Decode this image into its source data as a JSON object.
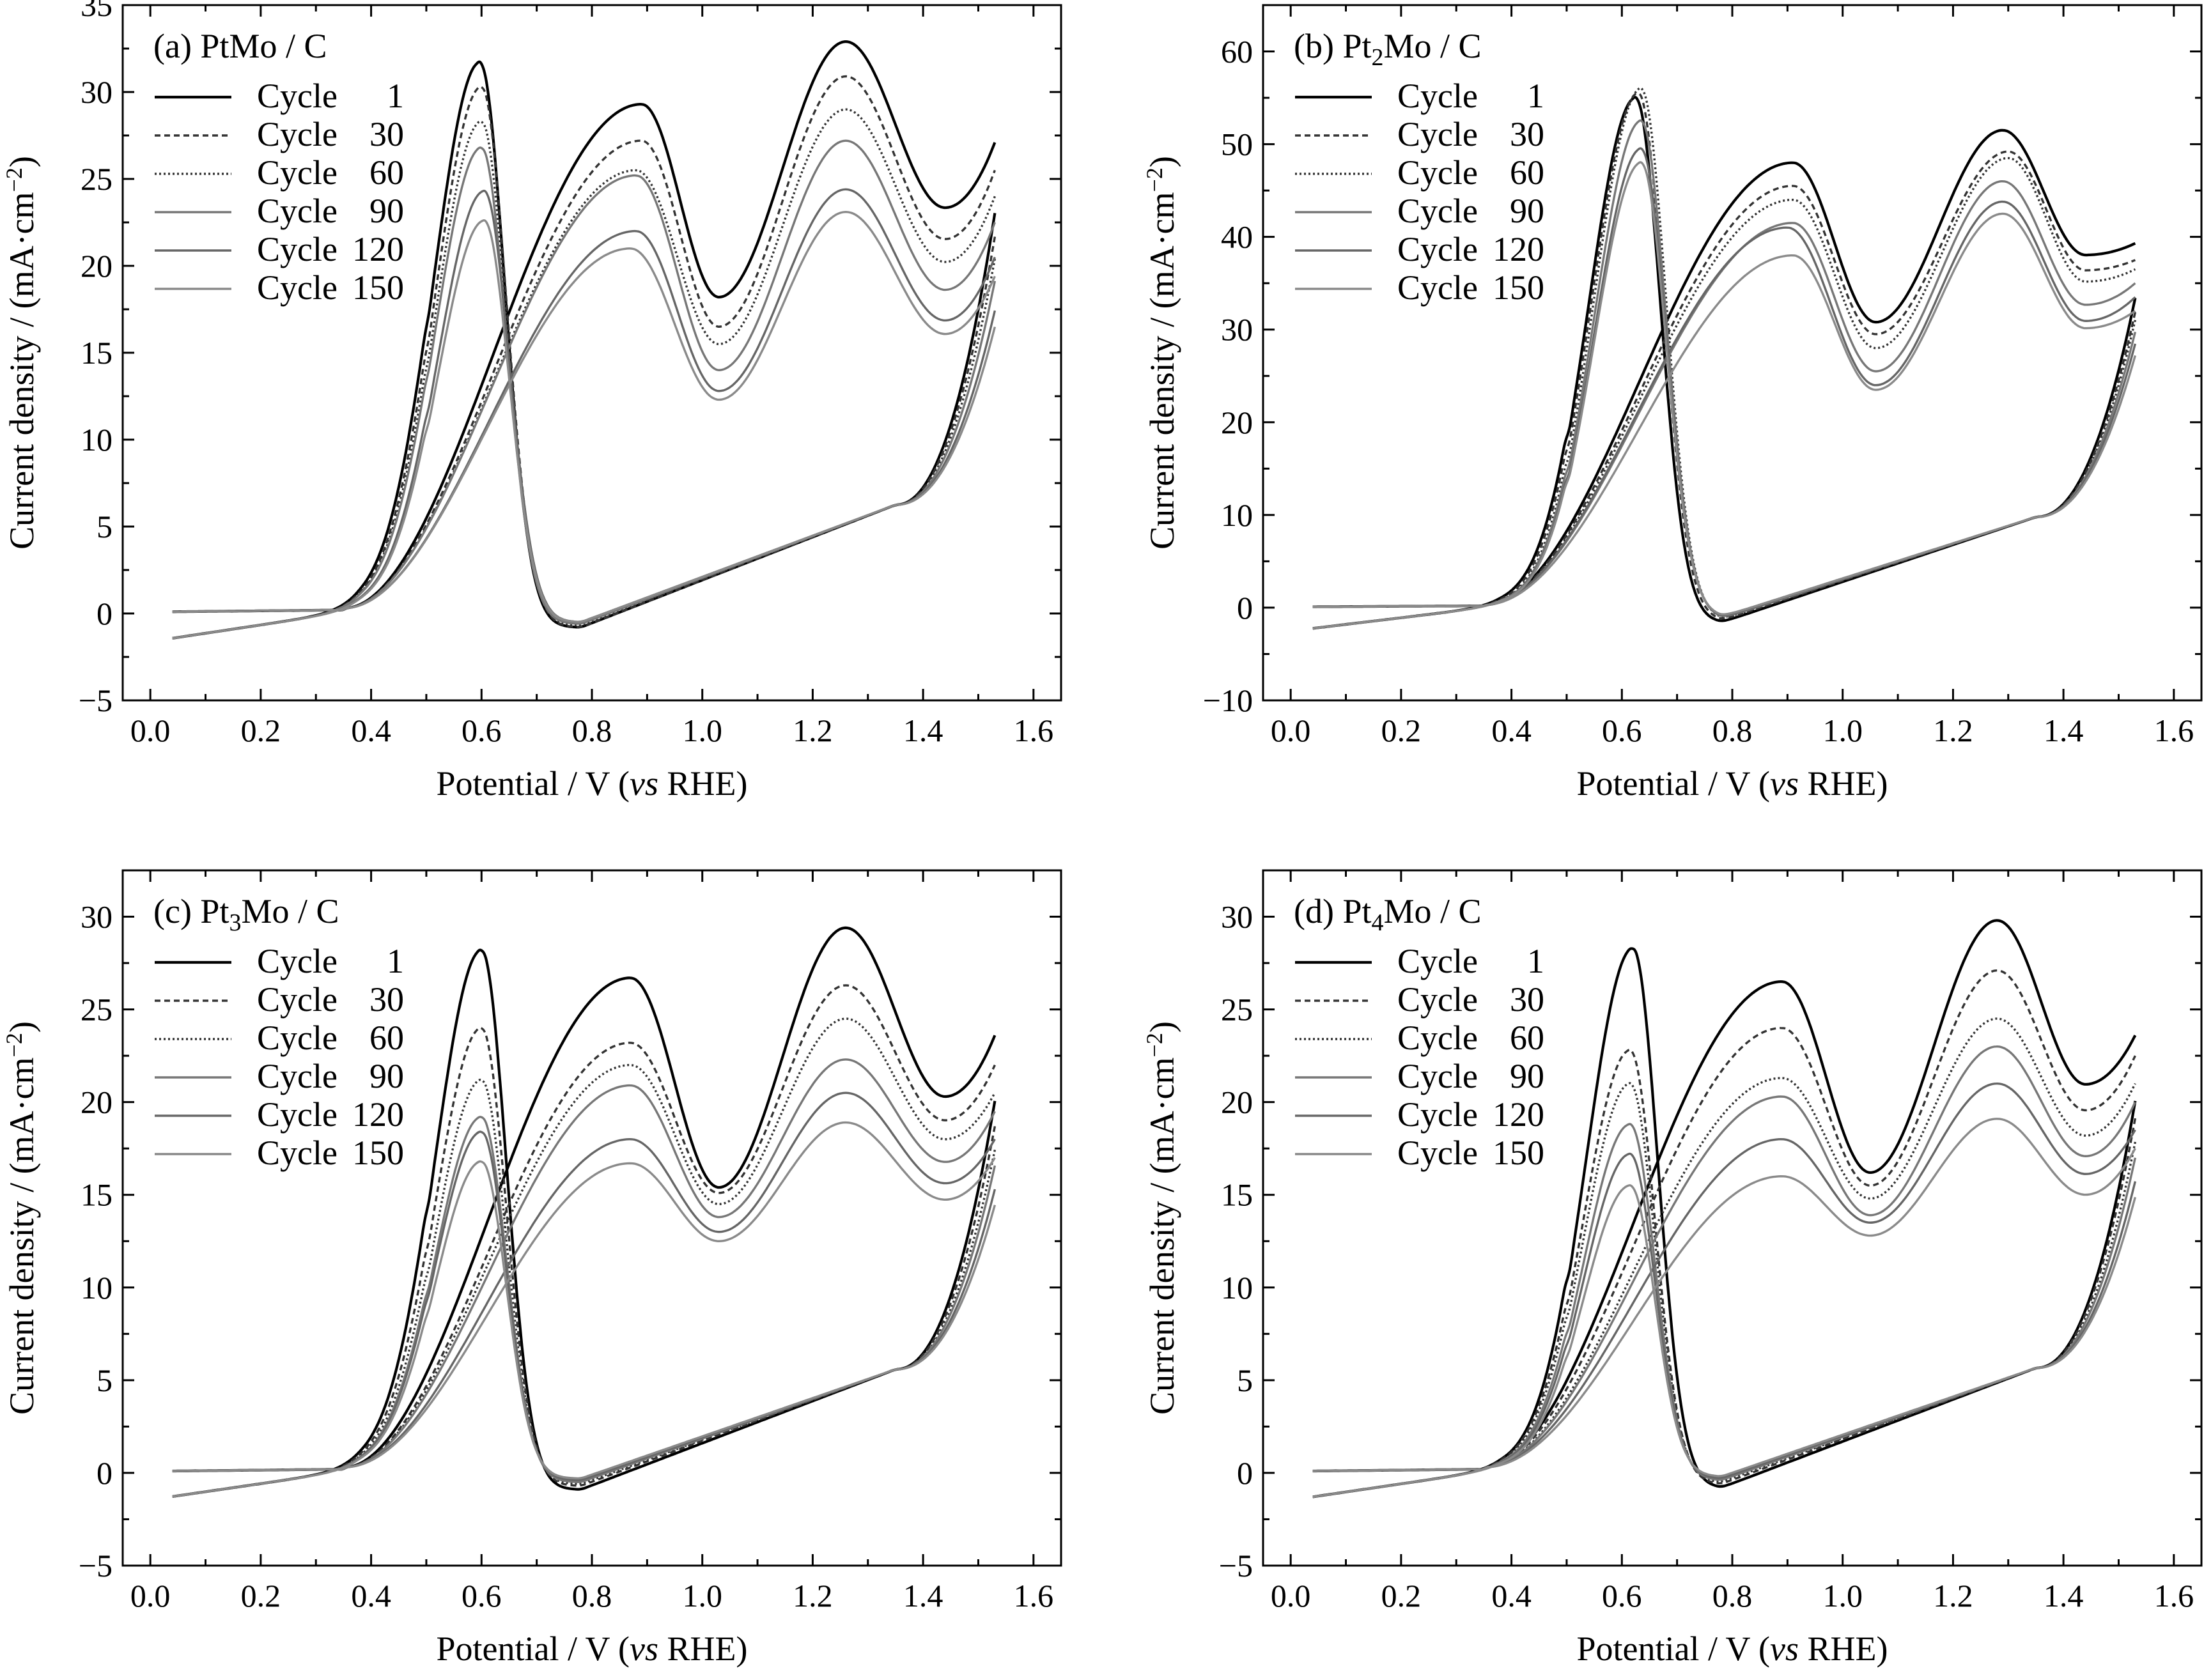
{
  "figure": {
    "xlabel_prefix": "Potential / V (",
    "xlabel_vs": "vs",
    "xlabel_suffix": " RHE)",
    "ylabel": "Current density / (mA·cm",
    "ylabel_sup": "−2",
    "ylabel_close": ")",
    "cycle_word": "Cycle"
  },
  "chart_data": [
    {
      "type": "line",
      "panel": "a",
      "title_pre": "(a) PtMo",
      "title_sub": "",
      "title_post": "Mo / C",
      "title_plain": "(a) PtMo / C",
      "xlabel": "Potential / V (vs RHE)",
      "ylabel": "Current density / (mA·cm−2)",
      "xlim": [
        -0.05,
        1.65
      ],
      "ylim": [
        -5,
        35
      ],
      "xticks": [
        "0.0",
        "0.2",
        "0.4",
        "0.6",
        "0.8",
        "1.0",
        "1.2",
        "1.4",
        "1.6"
      ],
      "xtick_values": [
        0,
        0.2,
        0.4,
        0.6,
        0.8,
        1.0,
        1.2,
        1.4,
        1.6
      ],
      "yticks": [
        "−5",
        "0",
        "5",
        "10",
        "15",
        "20",
        "25",
        "30",
        "35"
      ],
      "ytick_values": [
        -5,
        0,
        5,
        10,
        15,
        20,
        25,
        30,
        35
      ],
      "legend_position": "top-left",
      "series": [
        {
          "name": "1",
          "forward_peak1": [
            0.89,
            29.3
          ],
          "forward_valley": [
            1.03,
            18.2
          ],
          "forward_peak2": [
            1.26,
            32.9
          ],
          "end_current": 27.1,
          "reverse_peak": [
            0.597,
            31.7
          ],
          "reverse_end": -0.8,
          "color": "#000000",
          "dash": ""
        },
        {
          "name": "30",
          "forward_peak1": [
            0.89,
            27.2
          ],
          "forward_valley": [
            1.03,
            16.5
          ],
          "forward_peak2": [
            1.26,
            30.9
          ],
          "end_current": 25.5,
          "reverse_peak": [
            0.6,
            30.3
          ],
          "reverse_end": -0.8,
          "color": "#333333",
          "dash": "9,6"
        },
        {
          "name": "60",
          "forward_peak1": [
            0.88,
            25.5
          ],
          "forward_valley": [
            1.03,
            15.5
          ],
          "forward_peak2": [
            1.26,
            29.0
          ],
          "end_current": 24.0,
          "reverse_peak": [
            0.6,
            28.3
          ],
          "reverse_end": -0.7,
          "color": "#333333",
          "dash": "3,4"
        },
        {
          "name": "90",
          "forward_peak1": [
            0.88,
            25.2
          ],
          "forward_valley": [
            1.03,
            14.0
          ],
          "forward_peak2": [
            1.26,
            27.2
          ],
          "end_current": 22.5,
          "reverse_peak": [
            0.6,
            26.8
          ],
          "reverse_end": -0.6,
          "color": "#777777",
          "dash": ""
        },
        {
          "name": "120",
          "forward_peak1": [
            0.88,
            22.0
          ],
          "forward_valley": [
            1.03,
            12.8
          ],
          "forward_peak2": [
            1.26,
            24.4
          ],
          "end_current": 20.5,
          "reverse_peak": [
            0.605,
            24.3
          ],
          "reverse_end": -0.5,
          "color": "#666666",
          "dash": ""
        },
        {
          "name": "150",
          "forward_peak1": [
            0.87,
            21.0
          ],
          "forward_valley": [
            1.03,
            12.3
          ],
          "forward_peak2": [
            1.26,
            23.1
          ],
          "end_current": 19.4,
          "reverse_peak": [
            0.605,
            22.6
          ],
          "reverse_end": -0.5,
          "color": "#8a8a8a",
          "dash": ""
        }
      ]
    },
    {
      "type": "line",
      "panel": "b",
      "title_pre": "(b) Pt",
      "title_sub": "2",
      "title_post": "Mo / C",
      "title_plain": "(b) Pt2Mo / C",
      "xlabel": "Potential / V (vs RHE)",
      "ylabel": "Current density / (mA·cm−2)",
      "xlim": [
        -0.05,
        1.65
      ],
      "ylim": [
        -10,
        65
      ],
      "xticks": [
        "0.0",
        "0.2",
        "0.4",
        "0.6",
        "0.8",
        "1.0",
        "1.2",
        "1.4",
        "1.6"
      ],
      "xtick_values": [
        0,
        0.2,
        0.4,
        0.6,
        0.8,
        1.0,
        1.2,
        1.4,
        1.6
      ],
      "yticks": [
        "−10",
        "0",
        "10",
        "20",
        "30",
        "40",
        "50",
        "60"
      ],
      "ytick_values": [
        -10,
        0,
        10,
        20,
        30,
        40,
        50,
        60
      ],
      "legend_position": "top-left",
      "series": [
        {
          "name": "1",
          "forward_peak1": [
            0.91,
            48.0
          ],
          "forward_valley": [
            1.06,
            30.8
          ],
          "forward_peak2": [
            1.29,
            51.5
          ],
          "end_current": 39.3,
          "reverse_peak": [
            0.625,
            55.0
          ],
          "reverse_end": -1.6,
          "color": "#000000",
          "dash": ""
        },
        {
          "name": "30",
          "forward_peak1": [
            0.91,
            45.5
          ],
          "forward_valley": [
            1.06,
            29.5
          ],
          "forward_peak2": [
            1.3,
            49.2
          ],
          "end_current": 37.5,
          "reverse_peak": [
            0.63,
            55.5
          ],
          "reverse_end": -1.4,
          "color": "#333333",
          "dash": "9,6"
        },
        {
          "name": "60",
          "forward_peak1": [
            0.91,
            44.0
          ],
          "forward_valley": [
            1.06,
            28.0
          ],
          "forward_peak2": [
            1.3,
            48.5
          ],
          "end_current": 36.5,
          "reverse_peak": [
            0.635,
            56.0
          ],
          "reverse_end": -1.3,
          "color": "#333333",
          "dash": "3,4"
        },
        {
          "name": "90",
          "forward_peak1": [
            0.91,
            41.5
          ],
          "forward_valley": [
            1.06,
            25.5
          ],
          "forward_peak2": [
            1.29,
            46.0
          ],
          "end_current": 35.0,
          "reverse_peak": [
            0.635,
            52.5
          ],
          "reverse_end": -1.2,
          "color": "#777777",
          "dash": ""
        },
        {
          "name": "120",
          "forward_peak1": [
            0.9,
            41.0
          ],
          "forward_valley": [
            1.06,
            24.0
          ],
          "forward_peak2": [
            1.29,
            43.8
          ],
          "end_current": 33.5,
          "reverse_peak": [
            0.635,
            49.5
          ],
          "reverse_end": -1.1,
          "color": "#666666",
          "dash": ""
        },
        {
          "name": "150",
          "forward_peak1": [
            0.91,
            38.0
          ],
          "forward_valley": [
            1.06,
            23.5
          ],
          "forward_peak2": [
            1.29,
            42.5
          ],
          "end_current": 32.0,
          "reverse_peak": [
            0.635,
            48.0
          ],
          "reverse_end": -1.0,
          "color": "#8a8a8a",
          "dash": ""
        }
      ]
    },
    {
      "type": "line",
      "panel": "c",
      "title_pre": "(c) Pt",
      "title_sub": "3",
      "title_post": "Mo / C",
      "title_plain": "(c) Pt3Mo / C",
      "xlabel": "Potential / V (vs RHE)",
      "ylabel": "Current density / (mA·cm−2)",
      "xlim": [
        -0.05,
        1.65
      ],
      "ylim": [
        -5,
        32.5
      ],
      "xticks": [
        "0.0",
        "0.2",
        "0.4",
        "0.6",
        "0.8",
        "1.0",
        "1.2",
        "1.4",
        "1.6"
      ],
      "xtick_values": [
        0,
        0.2,
        0.4,
        0.6,
        0.8,
        1.0,
        1.2,
        1.4,
        1.6
      ],
      "yticks": [
        "−5",
        "0",
        "5",
        "10",
        "15",
        "20",
        "25",
        "30"
      ],
      "ytick_values": [
        -5,
        0,
        5,
        10,
        15,
        20,
        25,
        30
      ],
      "legend_position": "top-left",
      "series": [
        {
          "name": "1",
          "forward_peak1": [
            0.87,
            26.7
          ],
          "forward_valley": [
            1.03,
            15.4
          ],
          "forward_peak2": [
            1.26,
            29.4
          ],
          "end_current": 23.6,
          "reverse_peak": [
            0.6,
            28.2
          ],
          "reverse_end": -0.9,
          "color": "#000000",
          "dash": ""
        },
        {
          "name": "30",
          "forward_peak1": [
            0.87,
            23.2
          ],
          "forward_valley": [
            1.03,
            15.1
          ],
          "forward_peak2": [
            1.26,
            26.3
          ],
          "end_current": 22.0,
          "reverse_peak": [
            0.6,
            24.0
          ],
          "reverse_end": -0.7,
          "color": "#333333",
          "dash": "9,6"
        },
        {
          "name": "60",
          "forward_peak1": [
            0.87,
            22.0
          ],
          "forward_valley": [
            1.03,
            14.5
          ],
          "forward_peak2": [
            1.26,
            24.5
          ],
          "end_current": 20.5,
          "reverse_peak": [
            0.6,
            21.2
          ],
          "reverse_end": -0.6,
          "color": "#333333",
          "dash": "3,4"
        },
        {
          "name": "90",
          "forward_peak1": [
            0.87,
            20.9
          ],
          "forward_valley": [
            1.03,
            13.8
          ],
          "forward_peak2": [
            1.26,
            22.3
          ],
          "end_current": 19.5,
          "reverse_peak": [
            0.6,
            19.2
          ],
          "reverse_end": -0.5,
          "color": "#777777",
          "dash": ""
        },
        {
          "name": "120",
          "forward_peak1": [
            0.87,
            18.0
          ],
          "forward_valley": [
            1.03,
            13.0
          ],
          "forward_peak2": [
            1.26,
            20.5
          ],
          "end_current": 18.0,
          "reverse_peak": [
            0.6,
            18.4
          ],
          "reverse_end": -0.4,
          "color": "#666666",
          "dash": ""
        },
        {
          "name": "150",
          "forward_peak1": [
            0.87,
            16.7
          ],
          "forward_valley": [
            1.03,
            12.5
          ],
          "forward_peak2": [
            1.26,
            18.9
          ],
          "end_current": 17.0,
          "reverse_peak": [
            0.6,
            16.8
          ],
          "reverse_end": -0.3,
          "color": "#8a8a8a",
          "dash": ""
        }
      ]
    },
    {
      "type": "line",
      "panel": "d",
      "title_pre": "(d) Pt",
      "title_sub": "4",
      "title_post": "Mo / C",
      "title_plain": "(d) Pt4Mo / C",
      "xlabel": "Potential / V (vs RHE)",
      "ylabel": "Current density / (mA·cm−2)",
      "xlim": [
        -0.05,
        1.65
      ],
      "ylim": [
        -5,
        32.5
      ],
      "xticks": [
        "0.0",
        "0.2",
        "0.4",
        "0.6",
        "0.8",
        "1.0",
        "1.2",
        "1.4",
        "1.6"
      ],
      "xtick_values": [
        0,
        0.2,
        0.4,
        0.6,
        0.8,
        1.0,
        1.2,
        1.4,
        1.6
      ],
      "yticks": [
        "−5",
        "0",
        "5",
        "10",
        "15",
        "20",
        "25",
        "30"
      ],
      "ytick_values": [
        -5,
        0,
        5,
        10,
        15,
        20,
        25,
        30
      ],
      "legend_position": "top-left",
      "series": [
        {
          "name": "1",
          "forward_peak1": [
            0.89,
            26.5
          ],
          "forward_valley": [
            1.05,
            16.2
          ],
          "forward_peak2": [
            1.28,
            29.8
          ],
          "end_current": 23.6,
          "reverse_peak": [
            0.62,
            28.3
          ],
          "reverse_end": -0.8,
          "color": "#000000",
          "dash": ""
        },
        {
          "name": "30",
          "forward_peak1": [
            0.89,
            24.0
          ],
          "forward_valley": [
            1.05,
            15.5
          ],
          "forward_peak2": [
            1.28,
            27.1
          ],
          "end_current": 22.5,
          "reverse_peak": [
            0.615,
            22.8
          ],
          "reverse_end": -0.6,
          "color": "#333333",
          "dash": "9,6"
        },
        {
          "name": "60",
          "forward_peak1": [
            0.89,
            21.3
          ],
          "forward_valley": [
            1.05,
            14.8
          ],
          "forward_peak2": [
            1.28,
            24.5
          ],
          "end_current": 21.0,
          "reverse_peak": [
            0.615,
            21.0
          ],
          "reverse_end": -0.5,
          "color": "#333333",
          "dash": "3,4"
        },
        {
          "name": "90",
          "forward_peak1": [
            0.89,
            20.3
          ],
          "forward_valley": [
            1.05,
            13.9
          ],
          "forward_peak2": [
            1.28,
            23.0
          ],
          "end_current": 20.0,
          "reverse_peak": [
            0.615,
            18.8
          ],
          "reverse_end": -0.4,
          "color": "#777777",
          "dash": ""
        },
        {
          "name": "120",
          "forward_peak1": [
            0.89,
            18.0
          ],
          "forward_valley": [
            1.05,
            13.5
          ],
          "forward_peak2": [
            1.28,
            21.0
          ],
          "end_current": 18.5,
          "reverse_peak": [
            0.615,
            17.2
          ],
          "reverse_end": -0.3,
          "color": "#666666",
          "dash": ""
        },
        {
          "name": "150",
          "forward_peak1": [
            0.89,
            16.0
          ],
          "forward_valley": [
            1.05,
            12.8
          ],
          "forward_peak2": [
            1.28,
            19.1
          ],
          "end_current": 17.5,
          "reverse_peak": [
            0.615,
            15.5
          ],
          "reverse_end": -0.2,
          "color": "#8a8a8a",
          "dash": ""
        }
      ]
    }
  ]
}
